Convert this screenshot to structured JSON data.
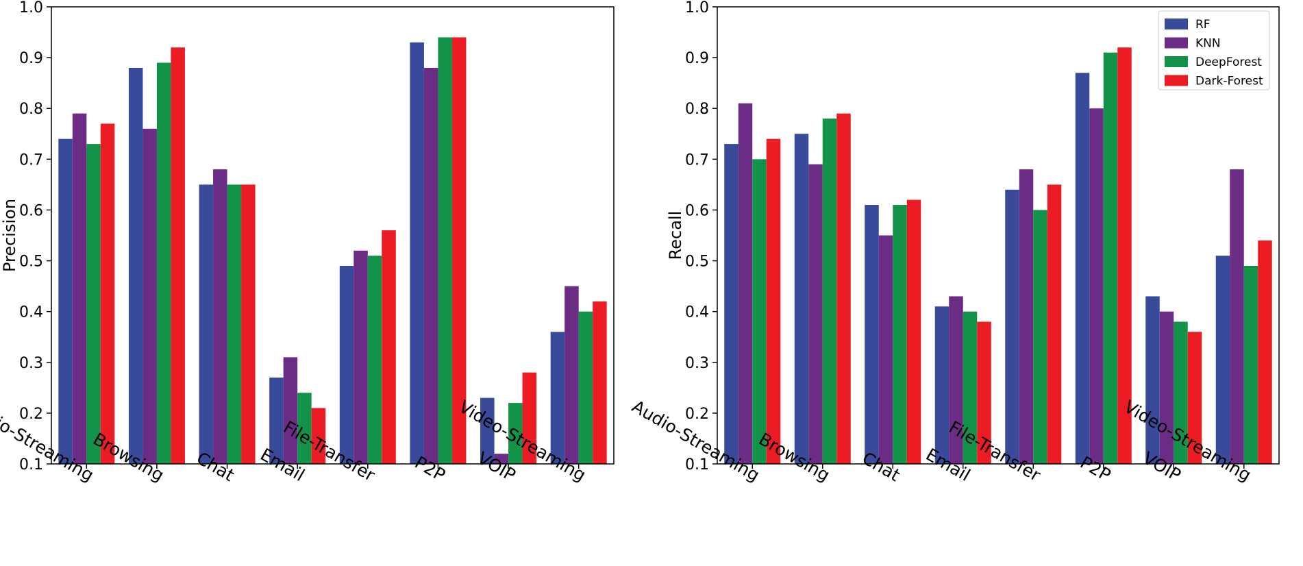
{
  "chart_data": [
    {
      "type": "bar",
      "title": "",
      "xlabel": "",
      "ylabel": "Precision",
      "ylim": [
        0.1,
        1.0
      ],
      "yticks": [
        "0.1",
        "0.2",
        "0.3",
        "0.4",
        "0.5",
        "0.6",
        "0.7",
        "0.8",
        "0.9",
        "1.0"
      ],
      "categories": [
        "Audio-Streaming",
        "Browsing",
        "Chat",
        "Email",
        "File-Transfer",
        "P2P",
        "VOIP",
        "Video-Streaming"
      ],
      "legend": null,
      "series": [
        {
          "name": "RF",
          "color": "#3a4a9b",
          "values": [
            0.74,
            0.88,
            0.65,
            0.27,
            0.49,
            0.93,
            0.23,
            0.36
          ]
        },
        {
          "name": "KNN",
          "color": "#6a2c84",
          "values": [
            0.79,
            0.76,
            0.68,
            0.31,
            0.52,
            0.88,
            0.12,
            0.45
          ]
        },
        {
          "name": "DeepForest",
          "color": "#13934a",
          "values": [
            0.73,
            0.89,
            0.65,
            0.24,
            0.51,
            0.94,
            0.22,
            0.4
          ]
        },
        {
          "name": "Dark-Forest",
          "color": "#ec1c24",
          "values": [
            0.77,
            0.92,
            0.65,
            0.21,
            0.56,
            0.94,
            0.28,
            0.42
          ]
        }
      ]
    },
    {
      "type": "bar",
      "title": "",
      "xlabel": "",
      "ylabel": "Recall",
      "ylim": [
        0.1,
        1.0
      ],
      "yticks": [
        "0.1",
        "0.2",
        "0.3",
        "0.4",
        "0.5",
        "0.6",
        "0.7",
        "0.8",
        "0.9",
        "1.0"
      ],
      "categories": [
        "Audio-Streaming",
        "Browsing",
        "Chat",
        "Email",
        "File-Transfer",
        "P2P",
        "VOIP",
        "Video-Streaming"
      ],
      "legend": "top-right",
      "series": [
        {
          "name": "RF",
          "color": "#3a4a9b",
          "values": [
            0.73,
            0.75,
            0.61,
            0.41,
            0.64,
            0.87,
            0.43,
            0.51
          ]
        },
        {
          "name": "KNN",
          "color": "#6a2c84",
          "values": [
            0.81,
            0.69,
            0.55,
            0.43,
            0.68,
            0.8,
            0.4,
            0.68
          ]
        },
        {
          "name": "DeepForest",
          "color": "#13934a",
          "values": [
            0.7,
            0.78,
            0.61,
            0.4,
            0.6,
            0.91,
            0.38,
            0.49
          ]
        },
        {
          "name": "Dark-Forest",
          "color": "#ec1c24",
          "values": [
            0.74,
            0.79,
            0.62,
            0.38,
            0.65,
            0.92,
            0.36,
            0.54
          ]
        }
      ]
    }
  ]
}
